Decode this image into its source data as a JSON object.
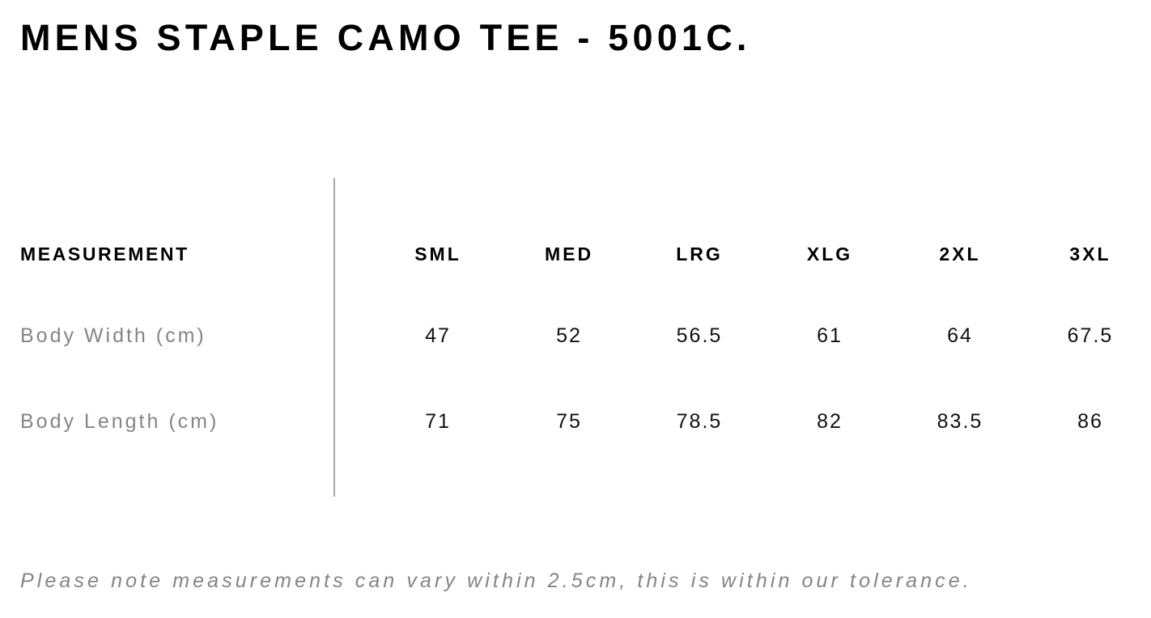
{
  "title": "MENS STAPLE CAMO TEE - 5001C.",
  "table": {
    "header_label": "MEASUREMENT",
    "sizes": [
      "SML",
      "MED",
      "LRG",
      "XLG",
      "2XL",
      "3XL"
    ],
    "rows": [
      {
        "label": "Body Width (cm)",
        "values": [
          "47",
          "52",
          "56.5",
          "61",
          "64",
          "67.5"
        ]
      },
      {
        "label": "Body Length (cm)",
        "values": [
          "71",
          "75",
          "78.5",
          "82",
          "83.5",
          "86"
        ]
      }
    ]
  },
  "note": "Please note measurements can vary within 2.5cm, this is within our tolerance."
}
